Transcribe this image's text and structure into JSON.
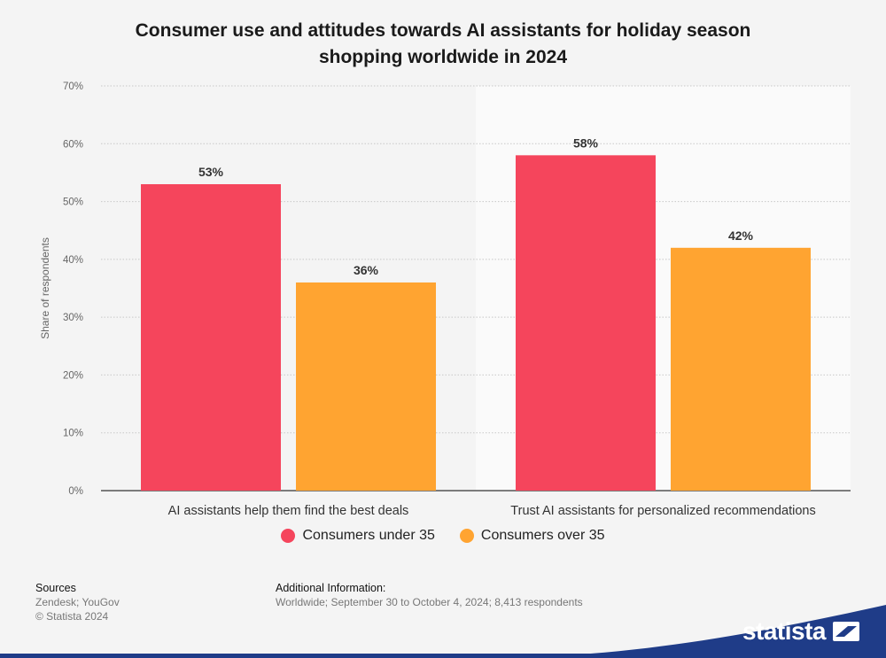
{
  "chart_title_line1": "Consumer use and attitudes towards AI assistants for holiday season",
  "chart_title_line2": "shopping worldwide in 2024",
  "legend": {
    "under35": "Consumers under 35",
    "over35": "Consumers over 35"
  },
  "colors": {
    "under35": "#f5455c",
    "over35": "#ffa431",
    "brand": "#1f3c88"
  },
  "chart_data": {
    "type": "bar",
    "categories": [
      "AI assistants help them find the best deals",
      "Trust AI assistants for personalized recommendations"
    ],
    "series": [
      {
        "name": "Consumers under 35",
        "values": [
          53,
          58
        ]
      },
      {
        "name": "Consumers over 35",
        "values": [
          36,
          42
        ]
      }
    ],
    "data_labels": [
      [
        "53%",
        "58%"
      ],
      [
        "36%",
        "42%"
      ]
    ],
    "ylabel": "Share of respondents",
    "ylim": [
      0,
      70
    ],
    "yticks": [
      0,
      10,
      20,
      30,
      40,
      50,
      60,
      70
    ],
    "ytick_labels": [
      "0%",
      "10%",
      "20%",
      "30%",
      "40%",
      "50%",
      "60%",
      "70%"
    ],
    "grid": true,
    "legend_position": "bottom"
  },
  "footer": {
    "sources_heading": "Sources",
    "sources_text": "Zendesk; YouGov",
    "copyright": "© Statista 2024",
    "additional_heading": "Additional Information:",
    "additional_text": "Worldwide; September 30 to October 4, 2024; 8,413 respondents"
  },
  "brand_name": "statista",
  "icons": {
    "brand_logo": "statista-logo-icon"
  }
}
